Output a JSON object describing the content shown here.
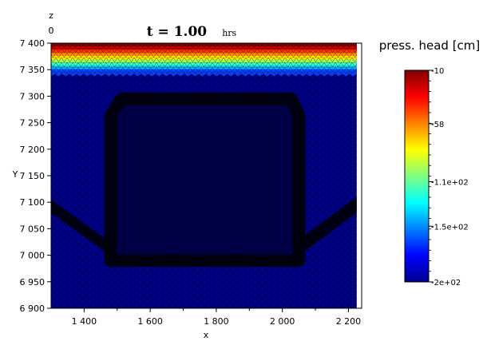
{
  "chart_data": {
    "type": "heatmap",
    "title": "t = 1.00",
    "title_unit": "hrs",
    "xlabel": "x",
    "ylabel": "Y",
    "zlabel": "z",
    "z_value_label": "0",
    "xlim": [
      1300,
      2240
    ],
    "ylim": [
      6900,
      7400
    ],
    "x_ticks": [
      1400,
      1600,
      1800,
      2000,
      2200
    ],
    "x_tick_labels": [
      "1 400",
      "1 600",
      "1 800",
      "2 000",
      "2 200"
    ],
    "y_ticks": [
      6900,
      6950,
      7000,
      7050,
      7100,
      7150,
      7200,
      7250,
      7300,
      7350,
      7400
    ],
    "y_tick_labels": [
      "6 900",
      "6 950",
      "7 000",
      "7 050",
      "7 100",
      "7 150",
      "7 200",
      "7 250",
      "7 300",
      "7 350",
      "7 400"
    ],
    "domain_right_x": 2225,
    "wetting_front": {
      "colors_top_to_bottom": [
        "#7f0000",
        "#cc0000",
        "#ff3300",
        "#ff9900",
        "#ffee00",
        "#aaff44",
        "#33ffcc",
        "#00bbff",
        "#0044ff"
      ],
      "band_top_y": 7400,
      "band_bottom_y": 7345
    },
    "dense_mesh_regions": {
      "box": {
        "x_min": 1480,
        "x_max": 2050,
        "y_min": 6990,
        "y_max": 7295
      },
      "left_diagonal": [
        [
          1300,
          7105
        ],
        [
          1300,
          7080
        ],
        [
          1490,
          6995
        ],
        [
          1490,
          7020
        ]
      ],
      "right_diagonal": [
        [
          2225,
          7110
        ],
        [
          2225,
          7080
        ],
        [
          2040,
          6995
        ],
        [
          2040,
          7025
        ]
      ]
    },
    "colorbar": {
      "title": "press. head [cm]",
      "labels": [
        "-10",
        "-58",
        "-1.1e+02",
        "-1.5e+02",
        "-2e+02"
      ],
      "label_values": [
        -10,
        -58,
        -110,
        -150,
        -200
      ],
      "range": [
        -200,
        -10
      ],
      "colors_top_to_bottom": [
        "#7f0000",
        "#ff0000",
        "#ff8000",
        "#ffff00",
        "#80ff80",
        "#00ffff",
        "#0080ff",
        "#0000ff",
        "#00008f"
      ]
    },
    "background_color": "#00008f",
    "grid": false
  }
}
